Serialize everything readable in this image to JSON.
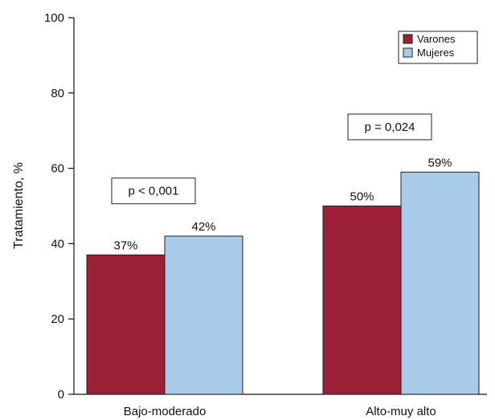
{
  "chart_data": {
    "type": "bar",
    "title": "",
    "xlabel": "",
    "ylabel": "Tratamiento, %",
    "ylim": [
      0,
      100
    ],
    "yticks": [
      0,
      20,
      40,
      60,
      80,
      100
    ],
    "grid": false,
    "legend_position": "top-right",
    "categories": [
      "Bajo-moderado",
      "Alto-muy alto"
    ],
    "series": [
      {
        "name": "Varones",
        "color": "#9b1f35",
        "values": [
          37,
          50
        ],
        "labels": [
          "37%",
          "50%"
        ]
      },
      {
        "name": "Mujeres",
        "color": "#a9cbea",
        "values": [
          42,
          59
        ],
        "labels": [
          "42%",
          "59%"
        ]
      }
    ],
    "annotations": [
      {
        "category_index": 0,
        "text": "p < 0,001",
        "y": 54
      },
      {
        "category_index": 1,
        "text": "p = 0,024",
        "y": 71
      }
    ]
  }
}
